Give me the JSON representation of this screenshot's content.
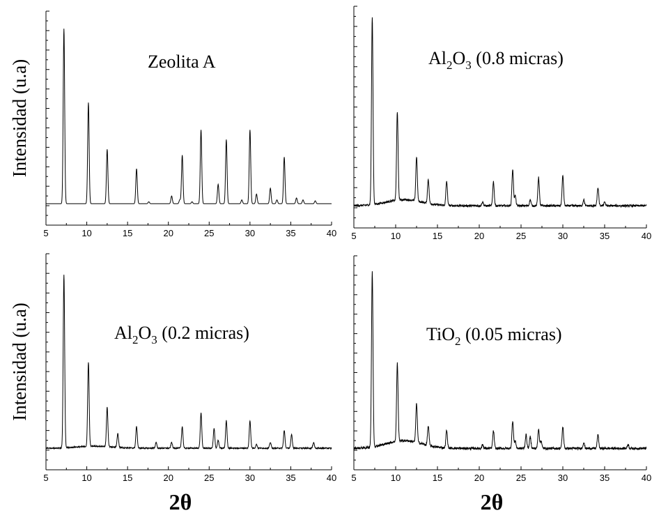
{
  "chart_data": [
    {
      "type": "line",
      "label_parts": [
        "Zeolita A"
      ],
      "ylabel": "Intensidad (u.a)",
      "xlabel": "",
      "x_ticks": [
        "5",
        "10",
        "15",
        "20",
        "25",
        "30",
        "35",
        "40"
      ],
      "xlim": [
        5,
        40
      ],
      "ylim": [
        -10,
        100
      ],
      "baseline": 1,
      "noise": 0.0,
      "hump": 0,
      "peaks": [
        {
          "x": 7.2,
          "y": 90
        },
        {
          "x": 10.2,
          "y": 52
        },
        {
          "x": 12.5,
          "y": 28
        },
        {
          "x": 16.1,
          "y": 18
        },
        {
          "x": 17.6,
          "y": 1
        },
        {
          "x": 20.4,
          "y": 4
        },
        {
          "x": 21.4,
          "y": 2
        },
        {
          "x": 21.7,
          "y": 25
        },
        {
          "x": 22.9,
          "y": 1
        },
        {
          "x": 24.0,
          "y": 38
        },
        {
          "x": 26.1,
          "y": 10
        },
        {
          "x": 27.1,
          "y": 33
        },
        {
          "x": 29.0,
          "y": 2
        },
        {
          "x": 30.0,
          "y": 38
        },
        {
          "x": 30.8,
          "y": 5
        },
        {
          "x": 32.5,
          "y": 8
        },
        {
          "x": 33.3,
          "y": 2
        },
        {
          "x": 34.2,
          "y": 24
        },
        {
          "x": 35.7,
          "y": 3
        },
        {
          "x": 36.5,
          "y": 2
        },
        {
          "x": 38.0,
          "y": 1.5
        }
      ]
    },
    {
      "type": "line",
      "label_parts": [
        "Al",
        "2",
        "O",
        "3",
        "   (0.8 micras)"
      ],
      "ylabel": "",
      "xlabel": "",
      "x_ticks": [
        "5",
        "10",
        "15",
        "20",
        "25",
        "30",
        "35",
        "40"
      ],
      "xlim": [
        5,
        40
      ],
      "ylim": [
        -10,
        100
      ],
      "baseline": 1,
      "noise": 0.5,
      "hump": 3,
      "peaks": [
        {
          "x": 7.2,
          "y": 93
        },
        {
          "x": 10.2,
          "y": 44
        },
        {
          "x": 12.5,
          "y": 22
        },
        {
          "x": 13.9,
          "y": 12
        },
        {
          "x": 16.1,
          "y": 12
        },
        {
          "x": 20.4,
          "y": 2
        },
        {
          "x": 21.7,
          "y": 12
        },
        {
          "x": 24.0,
          "y": 18
        },
        {
          "x": 24.3,
          "y": 5
        },
        {
          "x": 26.1,
          "y": 3
        },
        {
          "x": 27.1,
          "y": 14
        },
        {
          "x": 30.0,
          "y": 15
        },
        {
          "x": 32.5,
          "y": 3
        },
        {
          "x": 34.2,
          "y": 9
        },
        {
          "x": 35.0,
          "y": 2
        }
      ]
    },
    {
      "type": "line",
      "label_parts": [
        "Al",
        "2",
        "O",
        "3",
        "   (0.2 micras)"
      ],
      "ylabel": "Intensidad (u.a)",
      "xlabel": "2θ",
      "x_ticks": [
        "5",
        "10",
        "15",
        "20",
        "25",
        "30",
        "35",
        "40"
      ],
      "xlim": [
        5,
        40
      ],
      "ylim": [
        -10,
        100
      ],
      "baseline": 1,
      "noise": 0.3,
      "hump": 1,
      "peaks": [
        {
          "x": 7.2,
          "y": 88
        },
        {
          "x": 10.2,
          "y": 43
        },
        {
          "x": 12.5,
          "y": 20
        },
        {
          "x": 13.8,
          "y": 7
        },
        {
          "x": 16.1,
          "y": 11
        },
        {
          "x": 18.5,
          "y": 3
        },
        {
          "x": 20.4,
          "y": 3
        },
        {
          "x": 21.7,
          "y": 11
        },
        {
          "x": 24.0,
          "y": 18
        },
        {
          "x": 25.6,
          "y": 10
        },
        {
          "x": 26.1,
          "y": 4
        },
        {
          "x": 27.1,
          "y": 14
        },
        {
          "x": 30.0,
          "y": 14
        },
        {
          "x": 30.8,
          "y": 2
        },
        {
          "x": 32.5,
          "y": 3
        },
        {
          "x": 34.2,
          "y": 9
        },
        {
          "x": 35.1,
          "y": 7
        },
        {
          "x": 37.8,
          "y": 3
        }
      ]
    },
    {
      "type": "line",
      "label_parts": [
        "TiO",
        "2",
        "   (0.05 micras)"
      ],
      "ylabel": "",
      "xlabel": "2θ",
      "x_ticks": [
        "5",
        "10",
        "15",
        "20",
        "25",
        "30",
        "35",
        "40"
      ],
      "xlim": [
        5,
        40
      ],
      "ylim": [
        -10,
        100
      ],
      "baseline": 1,
      "noise": 0.6,
      "hump": 4,
      "peaks": [
        {
          "x": 7.2,
          "y": 90
        },
        {
          "x": 10.2,
          "y": 40
        },
        {
          "x": 12.5,
          "y": 20
        },
        {
          "x": 13.9,
          "y": 10
        },
        {
          "x": 16.1,
          "y": 9
        },
        {
          "x": 20.4,
          "y": 2
        },
        {
          "x": 21.7,
          "y": 9
        },
        {
          "x": 24.0,
          "y": 14
        },
        {
          "x": 24.3,
          "y": 4
        },
        {
          "x": 25.6,
          "y": 7
        },
        {
          "x": 26.1,
          "y": 6
        },
        {
          "x": 27.1,
          "y": 10
        },
        {
          "x": 27.4,
          "y": 4
        },
        {
          "x": 30.0,
          "y": 11
        },
        {
          "x": 32.5,
          "y": 3
        },
        {
          "x": 34.2,
          "y": 7
        },
        {
          "x": 37.8,
          "y": 2
        }
      ]
    }
  ]
}
